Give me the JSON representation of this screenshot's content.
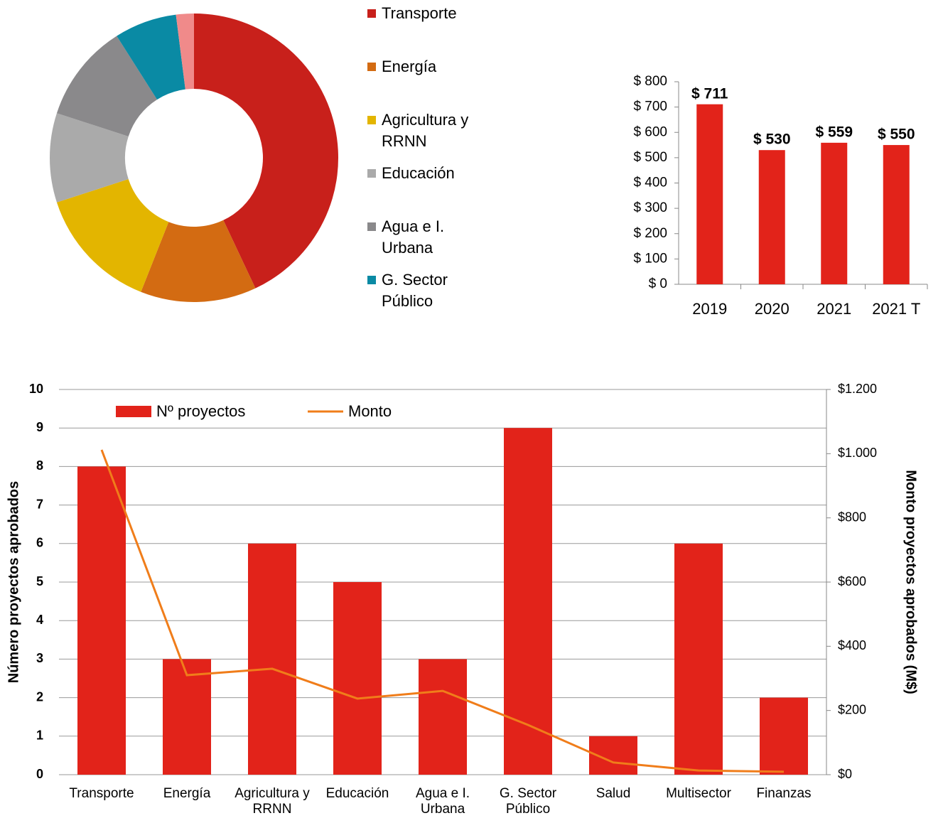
{
  "chart_data": [
    {
      "type": "donut",
      "categories": [
        "Transporte",
        "Energía",
        "Agricultura y RRNN",
        "Educación",
        "Agua e I. Urbana",
        "G. Sector Público",
        null
      ],
      "values": [
        43,
        13,
        14,
        10,
        11,
        7,
        2
      ],
      "colors": [
        "#c8201b",
        "#d36b12",
        "#e3b500",
        "#aaaaaa",
        "#8a898b",
        "#0a8aa4",
        "#f08a8a"
      ]
    },
    {
      "type": "bar",
      "categories": [
        "2019",
        "2020",
        "2021",
        "2021 T"
      ],
      "values": [
        711,
        530,
        559,
        550
      ],
      "value_labels": [
        "$ 711",
        "$ 530",
        "$ 559",
        "$ 550"
      ],
      "color": "#e2231a",
      "ylim": [
        0,
        800
      ],
      "yticks": [
        {
          "value": 0,
          "label": "$ 0"
        },
        {
          "value": 100,
          "label": "$ 100"
        },
        {
          "value": 200,
          "label": "$ 200"
        },
        {
          "value": 300,
          "label": "$ 300"
        },
        {
          "value": 400,
          "label": "$ 400"
        },
        {
          "value": 500,
          "label": "$ 500"
        },
        {
          "value": 600,
          "label": "$ 600"
        },
        {
          "value": 700,
          "label": "$ 700"
        },
        {
          "value": 800,
          "label": "$ 800"
        }
      ]
    },
    {
      "type": "combo",
      "categories": [
        "Transporte",
        "Energía",
        "Agricultura y RRNN",
        "Educación",
        "Agua e I. Urbana",
        "G. Sector Público",
        "Salud",
        "Multisector",
        "Finanzas"
      ],
      "series": [
        {
          "name": "Nº proyectos",
          "type": "bar",
          "color": "#e2231a",
          "values": [
            8,
            3,
            6,
            5,
            3,
            9,
            1,
            6,
            2
          ]
        },
        {
          "name": "Monto",
          "type": "line",
          "color": "#f07d1a",
          "axis": "y2",
          "values": [
            1012,
            310,
            330,
            237,
            261,
            155,
            38,
            13,
            9
          ]
        }
      ],
      "ylim": [
        0,
        10
      ],
      "yticks": [
        0,
        1,
        2,
        3,
        4,
        5,
        6,
        7,
        8,
        9,
        10
      ],
      "y2lim": [
        0,
        1200
      ],
      "y2ticks": [
        {
          "value": 0,
          "label": "$0"
        },
        {
          "value": 200,
          "label": "$200"
        },
        {
          "value": 400,
          "label": "$400"
        },
        {
          "value": 600,
          "label": "$600"
        },
        {
          "value": 800,
          "label": "$800"
        },
        {
          "value": 1000,
          "label": "$1.000"
        },
        {
          "value": 1200,
          "label": "$1.200"
        }
      ],
      "ylabel": "Número proyectos aprobados",
      "y2label": "Monto proyectos aprobados (M$)",
      "grid": true,
      "legend": "top-left"
    }
  ]
}
